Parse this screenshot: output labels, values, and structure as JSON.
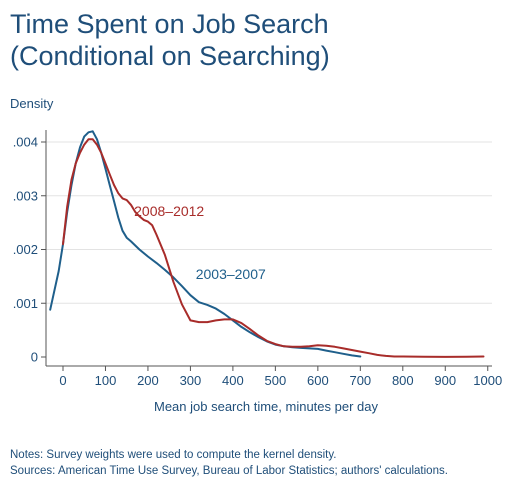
{
  "title_line1": "Time Spent on Job Search",
  "title_line2": "(Conditional on Searching)",
  "notes": "Notes: Survey weights were used to compute the kernel density.",
  "sources": "Sources: American Time Use Survey, Bureau of Labor Statistics; authors' calculations.",
  "chart_data": {
    "type": "line",
    "title": "Time Spent on Job Search",
    "subtitle": "(Conditional on Searching)",
    "xlabel": "Mean job search time, minutes per day",
    "ylabel": "Density",
    "xlim": [
      -40,
      1010
    ],
    "ylim": [
      0,
      0.0043
    ],
    "x_ticks": [
      0,
      100,
      200,
      300,
      400,
      500,
      600,
      700,
      800,
      900,
      1000
    ],
    "x_tick_labels": [
      "0",
      "100",
      "200",
      "300",
      "400",
      "500",
      "600",
      "700",
      "800",
      "900",
      "1000"
    ],
    "y_ticks": [
      0,
      0.001,
      0.002,
      0.003,
      0.004
    ],
    "y_tick_labels": [
      "0",
      ".001",
      ".002",
      ".003",
      ".004"
    ],
    "grid": "horizontal",
    "series": [
      {
        "name": "2003–2007",
        "color": "#1f5f8b",
        "x": [
          -30,
          -10,
          0,
          10,
          20,
          30,
          40,
          50,
          60,
          70,
          80,
          90,
          100,
          110,
          120,
          130,
          140,
          150,
          160,
          180,
          200,
          220,
          240,
          260,
          280,
          300,
          320,
          340,
          360,
          380,
          400,
          420,
          440,
          460,
          480,
          500,
          520,
          540,
          560,
          580,
          600,
          620,
          640,
          660,
          680,
          700
        ],
        "y": [
          0.00088,
          0.0016,
          0.0021,
          0.0027,
          0.0032,
          0.0036,
          0.0039,
          0.0041,
          0.00418,
          0.0042,
          0.00405,
          0.0038,
          0.0035,
          0.0032,
          0.0029,
          0.0026,
          0.00235,
          0.00222,
          0.00215,
          0.002,
          0.00187,
          0.00175,
          0.00162,
          0.00148,
          0.00132,
          0.00115,
          0.00102,
          0.00097,
          0.0009,
          0.0008,
          0.00068,
          0.00056,
          0.00046,
          0.00037,
          0.00029,
          0.00023,
          0.0002,
          0.00018,
          0.00017,
          0.00016,
          0.00015,
          0.00012,
          9e-05,
          6e-05,
          3e-05,
          1e-05
        ]
      },
      {
        "name": "2008–2012",
        "color": "#a82c2a",
        "x": [
          0,
          10,
          20,
          30,
          40,
          50,
          60,
          70,
          80,
          90,
          100,
          110,
          120,
          130,
          140,
          150,
          160,
          170,
          180,
          190,
          200,
          210,
          220,
          240,
          260,
          280,
          300,
          320,
          340,
          360,
          380,
          400,
          420,
          440,
          460,
          480,
          500,
          520,
          540,
          560,
          580,
          600,
          620,
          640,
          660,
          680,
          700,
          720,
          740,
          760,
          780,
          800,
          850,
          900,
          950,
          990
        ],
        "y": [
          0.0021,
          0.0028,
          0.0033,
          0.0036,
          0.0038,
          0.00395,
          0.00405,
          0.00405,
          0.00395,
          0.0038,
          0.0036,
          0.0034,
          0.0032,
          0.00305,
          0.00295,
          0.00292,
          0.00283,
          0.0027,
          0.00262,
          0.00255,
          0.00252,
          0.00245,
          0.00228,
          0.0019,
          0.0014,
          0.00098,
          0.00068,
          0.00065,
          0.00065,
          0.00068,
          0.0007,
          0.0007,
          0.00063,
          0.00052,
          0.0004,
          0.0003,
          0.00024,
          0.0002,
          0.00019,
          0.00019,
          0.0002,
          0.00022,
          0.00021,
          0.00019,
          0.00016,
          0.00013,
          0.0001,
          7e-05,
          4e-05,
          2e-05,
          1e-05,
          1e-05,
          5e-06,
          2e-06,
          5e-06,
          1e-05
        ]
      }
    ],
    "annotations": [
      {
        "text": "2008–2012",
        "series": "2008–2012",
        "x": 250,
        "y": 0.00262
      },
      {
        "text": "2003–2007",
        "series": "2003–2007",
        "x": 395,
        "y": 0.00145
      }
    ]
  }
}
